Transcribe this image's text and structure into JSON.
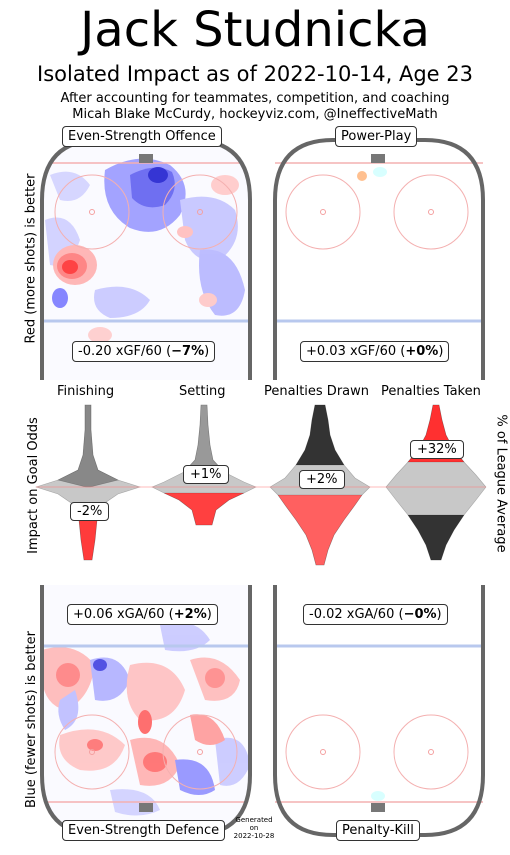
{
  "header": {
    "title": "Jack Studnicka",
    "subtitle": "Isolated Impact as of 2022-10-14, Age 23",
    "line1": "After accounting for teammates, competition, and coaching",
    "line2": "Micah Blake McCurdy, hockeyviz.com, @IneffectiveMath"
  },
  "panels": {
    "ev_offence": {
      "label": "Even-Strength Offence",
      "stat_pre": "-0.20 xGF/60 (",
      "stat_bold": "−7%",
      "stat_post": ")"
    },
    "power_play": {
      "label": "Power-Play",
      "stat_pre": "+0.03 xGF/60 (",
      "stat_bold": "+0%",
      "stat_post": ")"
    },
    "ev_defence": {
      "label": "Even-Strength Defence",
      "stat_pre": "+0.06 xGA/60 (",
      "stat_bold": "+2%",
      "stat_post": ")"
    },
    "penalty_kill": {
      "label": "Penalty-Kill",
      "stat_pre": "-0.02 xGA/60 (",
      "stat_bold": "−0%",
      "stat_post": ")"
    }
  },
  "axis_labels": {
    "left_top": "Red (more shots) is better",
    "left_mid": "Impact on Goal Odds",
    "left_bottom": "Blue (fewer shots) is better",
    "right_mid": "% of League Average"
  },
  "footer": {
    "generated": "Generated",
    "on": "on",
    "date": "2022-10-28"
  },
  "chart_data": {
    "type": "violin",
    "columns": [
      {
        "name": "Finishing",
        "value_label": "-2%",
        "value": -2
      },
      {
        "name": "Setting",
        "value_label": "+1%",
        "value": 1
      },
      {
        "name": "Penalties Drawn",
        "value_label": "+2%",
        "value": 2
      },
      {
        "name": "Penalties Taken",
        "value_label": "+32%",
        "value": 32
      }
    ],
    "colors": {
      "positive": "#ff3333",
      "negative": "#3a3aff",
      "neutral": "#888888",
      "rink_line": "#666666"
    }
  }
}
